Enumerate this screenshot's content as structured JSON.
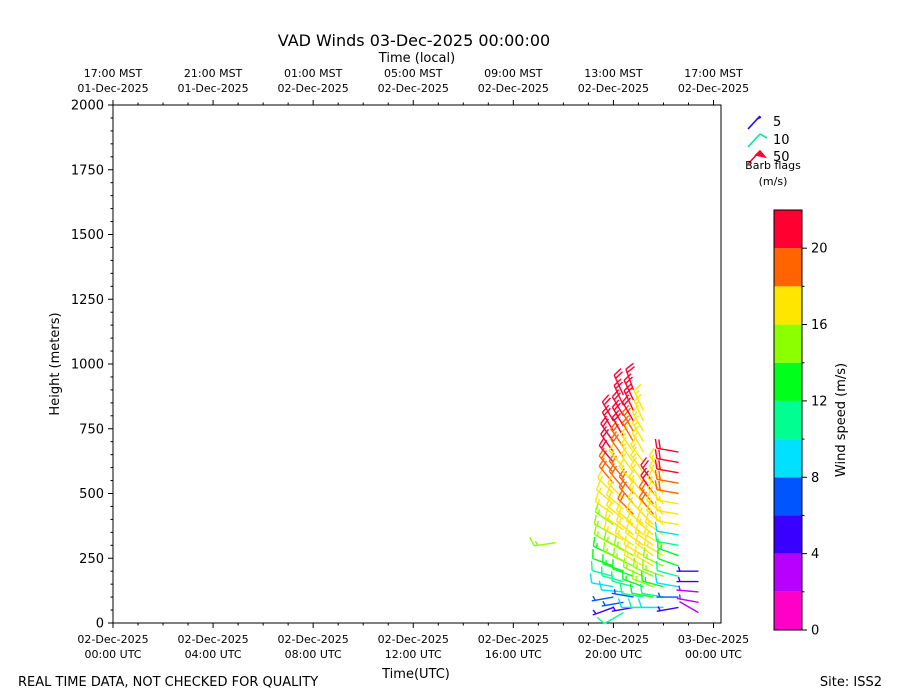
{
  "chart_data": {
    "type": "scatter",
    "title": "VAD Winds 03-Dec-2025 00:00:00",
    "top_axis_title": "Time (local)",
    "xlabel": "Time(UTC)",
    "ylabel": "Height (meters)",
    "ylim": [
      0,
      2000
    ],
    "xlim_hours": [
      0,
      24.3
    ],
    "x_ticks": [
      {
        "h": 0,
        "utc_line1": "02-Dec-2025",
        "utc_line2": "00:00 UTC",
        "local_line1": "17:00 MST",
        "local_line2": "01-Dec-2025"
      },
      {
        "h": 4,
        "utc_line1": "02-Dec-2025",
        "utc_line2": "04:00 UTC",
        "local_line1": "21:00 MST",
        "local_line2": "01-Dec-2025"
      },
      {
        "h": 8,
        "utc_line1": "02-Dec-2025",
        "utc_line2": "08:00 UTC",
        "local_line1": "01:00 MST",
        "local_line2": "02-Dec-2025"
      },
      {
        "h": 12,
        "utc_line1": "02-Dec-2025",
        "utc_line2": "12:00 UTC",
        "local_line1": "05:00 MST",
        "local_line2": "02-Dec-2025"
      },
      {
        "h": 16,
        "utc_line1": "02-Dec-2025",
        "utc_line2": "16:00 UTC",
        "local_line1": "09:00 MST",
        "local_line2": "02-Dec-2025"
      },
      {
        "h": 20,
        "utc_line1": "02-Dec-2025",
        "utc_line2": "20:00 UTC",
        "local_line1": "13:00 MST",
        "local_line2": "02-Dec-2025"
      },
      {
        "h": 24,
        "utc_line1": "03-Dec-2025",
        "utc_line2": "00:00 UTC",
        "local_line1": "17:00 MST",
        "local_line2": "02-Dec-2025"
      }
    ],
    "y_ticks": [
      0,
      250,
      500,
      750,
      1000,
      1250,
      1500,
      1750,
      2000
    ],
    "barb_legend": {
      "items": [
        {
          "label": "5",
          "color": "#1a0dff"
        },
        {
          "label": "10",
          "color": "#00e69a"
        },
        {
          "label": "50",
          "color": "#ff0030"
        }
      ],
      "title_line1": "Barb flags",
      "title_line2": "(m/s)"
    },
    "colorbar": {
      "label": "Wind speed (m/s)",
      "range": [
        0,
        22
      ],
      "ticks": [
        0,
        4,
        8,
        12,
        16,
        20
      ],
      "colors": [
        "#ff00c8",
        "#b800ff",
        "#3a00ff",
        "#0055ff",
        "#00e1ff",
        "#00ff90",
        "#00ff1a",
        "#8cff00",
        "#ffe600",
        "#ff6400",
        "#ff0030"
      ]
    },
    "profiles": [
      {
        "t": 17.7,
        "levels": [
          {
            "z": 310,
            "spd": 15,
            "dir": 262
          }
        ]
      },
      {
        "t": 20.0,
        "levels": [
          {
            "z": 60,
            "spd": 5,
            "dir": 250
          },
          {
            "z": 100,
            "spd": 6,
            "dir": 260
          },
          {
            "z": 140,
            "spd": 8,
            "dir": 280
          },
          {
            "z": 180,
            "spd": 10,
            "dir": 285
          },
          {
            "z": 220,
            "spd": 12,
            "dir": 290
          },
          {
            "z": 260,
            "spd": 13,
            "dir": 295
          },
          {
            "z": 300,
            "spd": 14,
            "dir": 300
          },
          {
            "z": 340,
            "spd": 15,
            "dir": 300
          },
          {
            "z": 380,
            "spd": 15,
            "dir": 305
          },
          {
            "z": 420,
            "spd": 16,
            "dir": 305
          },
          {
            "z": 460,
            "spd": 16,
            "dir": 310
          },
          {
            "z": 500,
            "spd": 17,
            "dir": 315
          },
          {
            "z": 540,
            "spd": 18,
            "dir": 320
          },
          {
            "z": 580,
            "spd": 19,
            "dir": 320
          },
          {
            "z": 620,
            "spd": 20,
            "dir": 320
          },
          {
            "z": 660,
            "spd": 20,
            "dir": 325
          },
          {
            "z": 700,
            "spd": 21,
            "dir": 325
          },
          {
            "z": 740,
            "spd": 21,
            "dir": 330
          },
          {
            "z": 780,
            "spd": 21,
            "dir": 330
          }
        ]
      },
      {
        "t": 20.4,
        "levels": [
          {
            "z": 40,
            "spd": 11,
            "dir": 240
          },
          {
            "z": 80,
            "spd": 6,
            "dir": 260
          },
          {
            "z": 120,
            "spd": 9,
            "dir": 275
          },
          {
            "z": 160,
            "spd": 11,
            "dir": 285
          },
          {
            "z": 200,
            "spd": 13,
            "dir": 290
          },
          {
            "z": 240,
            "spd": 14,
            "dir": 295
          },
          {
            "z": 280,
            "spd": 15,
            "dir": 300
          },
          {
            "z": 320,
            "spd": 16,
            "dir": 300
          },
          {
            "z": 360,
            "spd": 16,
            "dir": 305
          },
          {
            "z": 400,
            "spd": 17,
            "dir": 310
          },
          {
            "z": 440,
            "spd": 17,
            "dir": 310
          },
          {
            "z": 480,
            "spd": 17,
            "dir": 315
          },
          {
            "z": 520,
            "spd": 18,
            "dir": 320
          },
          {
            "z": 560,
            "spd": 18,
            "dir": 320
          },
          {
            "z": 600,
            "spd": 17,
            "dir": 320
          },
          {
            "z": 640,
            "spd": 18,
            "dir": 325
          },
          {
            "z": 680,
            "spd": 19,
            "dir": 325
          },
          {
            "z": 720,
            "spd": 20,
            "dir": 330
          },
          {
            "z": 760,
            "spd": 21,
            "dir": 330
          },
          {
            "z": 800,
            "spd": 21,
            "dir": 330
          },
          {
            "z": 840,
            "spd": 21,
            "dir": 335
          },
          {
            "z": 880,
            "spd": 21,
            "dir": 335
          }
        ]
      },
      {
        "t": 20.8,
        "levels": [
          {
            "z": 60,
            "spd": 5,
            "dir": 260
          },
          {
            "z": 100,
            "spd": 7,
            "dir": 280
          },
          {
            "z": 140,
            "spd": 10,
            "dir": 285
          },
          {
            "z": 180,
            "spd": 12,
            "dir": 290
          },
          {
            "z": 220,
            "spd": 14,
            "dir": 295
          },
          {
            "z": 260,
            "spd": 15,
            "dir": 300
          },
          {
            "z": 300,
            "spd": 17,
            "dir": 305
          },
          {
            "z": 340,
            "spd": 17,
            "dir": 310
          },
          {
            "z": 380,
            "spd": 17,
            "dir": 310
          },
          {
            "z": 420,
            "spd": 18,
            "dir": 315
          },
          {
            "z": 460,
            "spd": 19,
            "dir": 320
          },
          {
            "z": 500,
            "spd": 19,
            "dir": 320
          },
          {
            "z": 540,
            "spd": 17,
            "dir": 320
          },
          {
            "z": 580,
            "spd": 17,
            "dir": 325
          },
          {
            "z": 620,
            "spd": 17,
            "dir": 325
          },
          {
            "z": 660,
            "spd": 17,
            "dir": 325
          },
          {
            "z": 700,
            "spd": 18,
            "dir": 330
          },
          {
            "z": 740,
            "spd": 19,
            "dir": 330
          },
          {
            "z": 780,
            "spd": 20,
            "dir": 330
          },
          {
            "z": 820,
            "spd": 21,
            "dir": 335
          },
          {
            "z": 860,
            "spd": 21,
            "dir": 335
          },
          {
            "z": 900,
            "spd": 21,
            "dir": 340
          }
        ]
      },
      {
        "t": 21.2,
        "levels": [
          {
            "z": 60,
            "spd": 8,
            "dir": 270
          },
          {
            "z": 100,
            "spd": 11,
            "dir": 280
          },
          {
            "z": 140,
            "spd": 13,
            "dir": 290
          },
          {
            "z": 180,
            "spd": 15,
            "dir": 295
          },
          {
            "z": 220,
            "spd": 16,
            "dir": 300
          },
          {
            "z": 260,
            "spd": 17,
            "dir": 300
          },
          {
            "z": 300,
            "spd": 17,
            "dir": 305
          },
          {
            "z": 340,
            "spd": 17,
            "dir": 310
          },
          {
            "z": 380,
            "spd": 17,
            "dir": 310
          },
          {
            "z": 420,
            "spd": 17,
            "dir": 315
          },
          {
            "z": 460,
            "spd": 17,
            "dir": 320
          },
          {
            "z": 500,
            "spd": 17,
            "dir": 320
          },
          {
            "z": 540,
            "spd": 17,
            "dir": 325
          },
          {
            "z": 580,
            "spd": 17,
            "dir": 325
          },
          {
            "z": 620,
            "spd": 17,
            "dir": 325
          },
          {
            "z": 660,
            "spd": 17,
            "dir": 330
          },
          {
            "z": 700,
            "spd": 17,
            "dir": 330
          },
          {
            "z": 740,
            "spd": 17,
            "dir": 330
          },
          {
            "z": 780,
            "spd": 17,
            "dir": 335
          },
          {
            "z": 820,
            "spd": 17,
            "dir": 335
          }
        ]
      },
      {
        "t": 21.6,
        "levels": [
          {
            "z": 60,
            "spd": 10,
            "dir": 270
          },
          {
            "z": 100,
            "spd": 12,
            "dir": 280
          },
          {
            "z": 140,
            "spd": 14,
            "dir": 290
          },
          {
            "z": 180,
            "spd": 15,
            "dir": 295
          },
          {
            "z": 220,
            "spd": 16,
            "dir": 300
          },
          {
            "z": 260,
            "spd": 17,
            "dir": 305
          },
          {
            "z": 300,
            "spd": 17,
            "dir": 305
          },
          {
            "z": 340,
            "spd": 17,
            "dir": 310
          },
          {
            "z": 380,
            "spd": 17,
            "dir": 315
          },
          {
            "z": 420,
            "spd": 18,
            "dir": 320
          },
          {
            "z": 460,
            "spd": 19,
            "dir": 320
          },
          {
            "z": 500,
            "spd": 20,
            "dir": 325
          },
          {
            "z": 540,
            "spd": 21,
            "dir": 325
          }
        ]
      },
      {
        "t": 22.0,
        "levels": [
          {
            "z": 60,
            "spd": 8,
            "dir": 270
          },
          {
            "z": 100,
            "spd": 11,
            "dir": 280
          },
          {
            "z": 140,
            "spd": 13,
            "dir": 285
          },
          {
            "z": 180,
            "spd": 14,
            "dir": 290
          },
          {
            "z": 220,
            "spd": 15,
            "dir": 295
          },
          {
            "z": 260,
            "spd": 16,
            "dir": 300
          },
          {
            "z": 300,
            "spd": 17,
            "dir": 300
          },
          {
            "z": 340,
            "spd": 17,
            "dir": 305
          },
          {
            "z": 380,
            "spd": 17,
            "dir": 310
          },
          {
            "z": 420,
            "spd": 17,
            "dir": 310
          },
          {
            "z": 460,
            "spd": 17,
            "dir": 315
          },
          {
            "z": 500,
            "spd": 17,
            "dir": 315
          },
          {
            "z": 540,
            "spd": 17,
            "dir": 320
          },
          {
            "z": 580,
            "spd": 17,
            "dir": 320
          }
        ]
      },
      {
        "t": 22.6,
        "levels": [
          {
            "z": 60,
            "spd": 5,
            "dir": 260
          },
          {
            "z": 100,
            "spd": 7,
            "dir": 270
          },
          {
            "z": 140,
            "spd": 9,
            "dir": 280
          },
          {
            "z": 180,
            "spd": 11,
            "dir": 285
          },
          {
            "z": 220,
            "spd": 12,
            "dir": 290
          },
          {
            "z": 260,
            "spd": 13,
            "dir": 290
          },
          {
            "z": 300,
            "spd": 10,
            "dir": 280
          },
          {
            "z": 340,
            "spd": 9,
            "dir": 280
          },
          {
            "z": 380,
            "spd": 17,
            "dir": 280
          },
          {
            "z": 420,
            "spd": 17,
            "dir": 280
          },
          {
            "z": 460,
            "spd": 17,
            "dir": 280
          },
          {
            "z": 500,
            "spd": 18,
            "dir": 280
          },
          {
            "z": 540,
            "spd": 19,
            "dir": 280
          },
          {
            "z": 580,
            "spd": 20,
            "dir": 280
          },
          {
            "z": 620,
            "spd": 21,
            "dir": 280
          },
          {
            "z": 660,
            "spd": 21,
            "dir": 280
          }
        ]
      },
      {
        "t": 23.4,
        "levels": [
          {
            "z": 40,
            "spd": 2,
            "dir": 300
          },
          {
            "z": 80,
            "spd": 3,
            "dir": 280
          },
          {
            "z": 120,
            "spd": 3,
            "dir": 275
          },
          {
            "z": 160,
            "spd": 4,
            "dir": 270
          },
          {
            "z": 200,
            "spd": 4,
            "dir": 270
          }
        ]
      }
    ]
  },
  "footer_left": "REAL TIME DATA, NOT CHECKED FOR QUALITY",
  "footer_right": "Site: ISS2"
}
